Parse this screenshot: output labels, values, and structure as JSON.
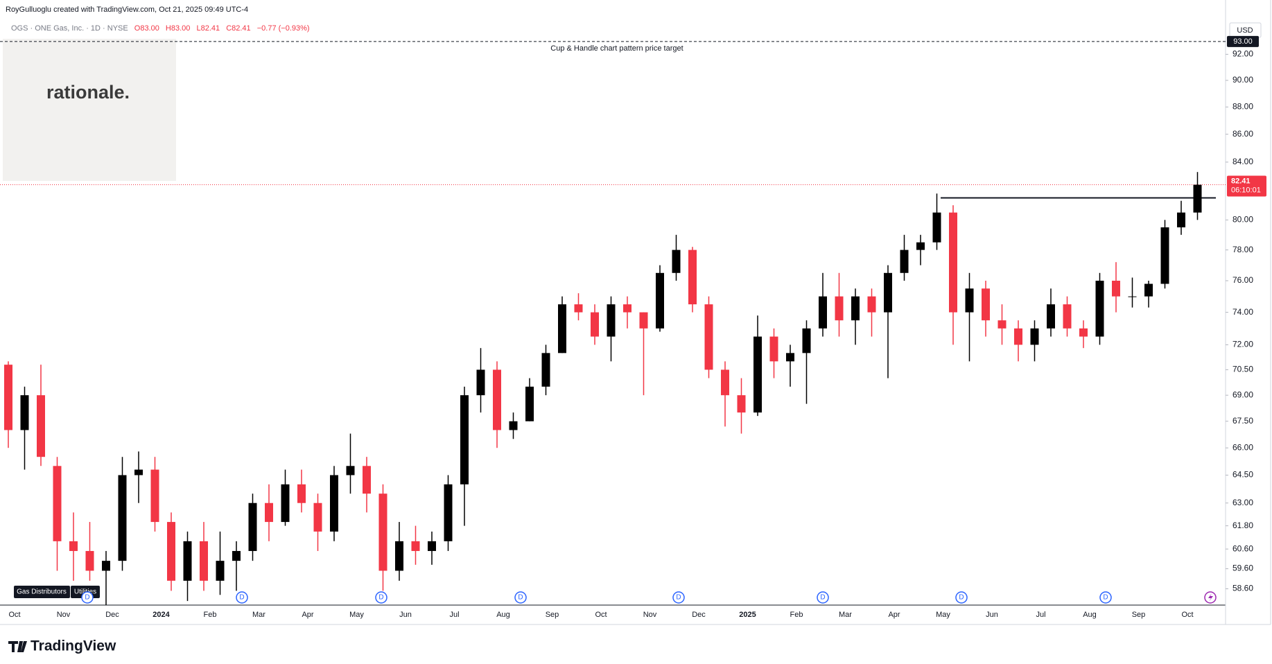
{
  "header": {
    "credit": "RoyGulluoglu created with TradingView.com, Oct 21, 2025 09:49 UTC-4",
    "symbol": "OGS · ONE Gas, Inc. · 1D · NYSE",
    "open": "O83.00",
    "high": "H83.00",
    "low": "L82.41",
    "close": "C82.41",
    "change": "−0.77 (−0.93%)",
    "currency": "USD"
  },
  "watermark": "rationale.",
  "tags": [
    "Gas Distributors",
    "Utilities"
  ],
  "event_label": "D",
  "brand": "TradingView",
  "chart_data": {
    "type": "candlestick",
    "categories": [
      "Oct",
      null,
      null,
      "Nov",
      null,
      null,
      "Dec",
      null,
      null,
      "2024",
      null,
      null,
      "Feb",
      null,
      null,
      "Mar",
      null,
      null,
      "Apr",
      null,
      null,
      "May",
      null,
      null,
      "Jun",
      null,
      null,
      "Jul",
      null,
      null,
      "Aug",
      null,
      null,
      "Sep",
      null,
      null,
      "Oct",
      null,
      null,
      "Nov",
      null,
      null,
      "Dec",
      null,
      null,
      "2025",
      null,
      null,
      "Feb",
      null,
      null,
      "Mar",
      null,
      null,
      "Apr",
      null,
      null,
      "May",
      null,
      null,
      "Jun",
      null,
      null,
      "Jul",
      null,
      null,
      "Aug",
      null,
      null,
      "Sep",
      null,
      null,
      "Oct",
      null
    ],
    "open": [
      70.8,
      67,
      69,
      65,
      61,
      60.5,
      59.5,
      60,
      64.5,
      64.8,
      62,
      59,
      61,
      59,
      60,
      60.5,
      63,
      62,
      64,
      63,
      61.5,
      64.5,
      65,
      63.5,
      59.5,
      61,
      60.5,
      61,
      64,
      69,
      70.5,
      67,
      67.5,
      69.5,
      71.5,
      74.5,
      74,
      72.5,
      74.5,
      74,
      73,
      76.5,
      78,
      74.5,
      70.5,
      69,
      68,
      72.5,
      71,
      71.5,
      73,
      75,
      73.5,
      75,
      74,
      76.5,
      78,
      78.5,
      80.5,
      74,
      75.5,
      73.5,
      73,
      72,
      73,
      74.5,
      73,
      72.5,
      76,
      75,
      75,
      75.8,
      79.5,
      80.5
    ],
    "high": [
      71,
      69.5,
      70.8,
      65.5,
      62.5,
      62,
      60.5,
      65.5,
      65.8,
      65.5,
      62.5,
      61.5,
      62,
      61.5,
      61,
      63.5,
      64,
      64.8,
      64.8,
      63.5,
      65,
      66.8,
      65.5,
      64,
      62,
      61.8,
      61.5,
      64.5,
      69.5,
      71.8,
      71,
      68,
      70,
      72,
      75,
      75.2,
      74.5,
      75,
      75,
      74,
      77,
      79,
      78.2,
      75,
      71,
      70,
      73.8,
      73,
      72,
      73.5,
      76.5,
      76.5,
      75.5,
      75.5,
      77,
      79,
      79,
      81.8,
      81,
      76.5,
      76,
      74.5,
      73.5,
      73.5,
      75.5,
      75,
      73.5,
      76.5,
      77.2,
      76.2,
      76,
      80,
      81.3,
      83.3
    ],
    "low": [
      66,
      64.8,
      65,
      59.5,
      59,
      59,
      57.8,
      59.5,
      63,
      61.5,
      58.5,
      58,
      58.5,
      58.3,
      58.5,
      60,
      61,
      61.8,
      62.5,
      60.5,
      61,
      63.5,
      62.5,
      58.5,
      59,
      59.8,
      59.8,
      60.5,
      61.8,
      68,
      66,
      66.5,
      67.5,
      69,
      71.5,
      73.5,
      72,
      71,
      73,
      69,
      72.8,
      76,
      74,
      70,
      67.2,
      66.8,
      67.8,
      70,
      69.5,
      68.5,
      72.5,
      72.5,
      72,
      72.5,
      70,
      76,
      77,
      78,
      72,
      71,
      72.5,
      72,
      71,
      71,
      72.5,
      72.5,
      71.8,
      72,
      74,
      74.3,
      74.3,
      75.5,
      79,
      80
    ],
    "close": [
      67,
      69,
      65.5,
      61,
      60.5,
      59.5,
      60,
      64.5,
      64.8,
      62,
      59,
      61,
      59,
      60,
      60.5,
      63,
      62,
      64,
      63,
      61.5,
      64.5,
      65,
      63.5,
      59.5,
      61,
      60.5,
      61,
      64,
      69,
      70.5,
      67,
      67.5,
      69.5,
      71.5,
      74.5,
      74,
      72.5,
      74.5,
      74,
      73,
      76.5,
      78,
      74.5,
      70.5,
      69,
      68,
      72.5,
      71,
      71.5,
      73,
      75,
      73.5,
      75,
      74,
      76.5,
      78,
      78.5,
      80.5,
      74,
      75.5,
      73.5,
      73,
      72,
      73,
      74.5,
      73,
      72.5,
      76,
      75,
      75,
      75.8,
      79.5,
      80.5,
      82.41
    ],
    "up_color": "#000000",
    "down_color": "#f23645",
    "log_scale": true,
    "ylim": [
      57.8,
      95
    ],
    "yticks": [
      {
        "value": 58.6,
        "label": "58.60"
      },
      {
        "value": 59.6,
        "label": "59.60"
      },
      {
        "value": 60.6,
        "label": "60.60"
      },
      {
        "value": 61.8,
        "label": "61.80"
      },
      {
        "value": 63,
        "label": "63.00"
      },
      {
        "value": 64.5,
        "label": "64.50"
      },
      {
        "value": 66,
        "label": "66.00"
      },
      {
        "value": 67.5,
        "label": "67.50"
      },
      {
        "value": 69,
        "label": "69.00"
      },
      {
        "value": 70.5,
        "label": "70.50"
      },
      {
        "value": 72,
        "label": "72.00"
      },
      {
        "value": 74,
        "label": "74.00"
      },
      {
        "value": 76,
        "label": "76.00"
      },
      {
        "value": 78,
        "label": "78.00"
      },
      {
        "value": 80,
        "label": "80.00"
      },
      {
        "value": 84,
        "label": "84.00"
      },
      {
        "value": 86,
        "label": "86.00"
      },
      {
        "value": 88,
        "label": "88.00"
      },
      {
        "value": 90,
        "label": "90.00"
      },
      {
        "value": 92,
        "label": "92.00"
      }
    ],
    "target": {
      "value": 93,
      "label": "93.00",
      "text": "Cup & Handle chart pattern price target"
    },
    "last_price": {
      "value": 82.41,
      "label": "82.41",
      "countdown": "06:10:01",
      "color": "#f23645"
    },
    "resistance": 81.5
  }
}
